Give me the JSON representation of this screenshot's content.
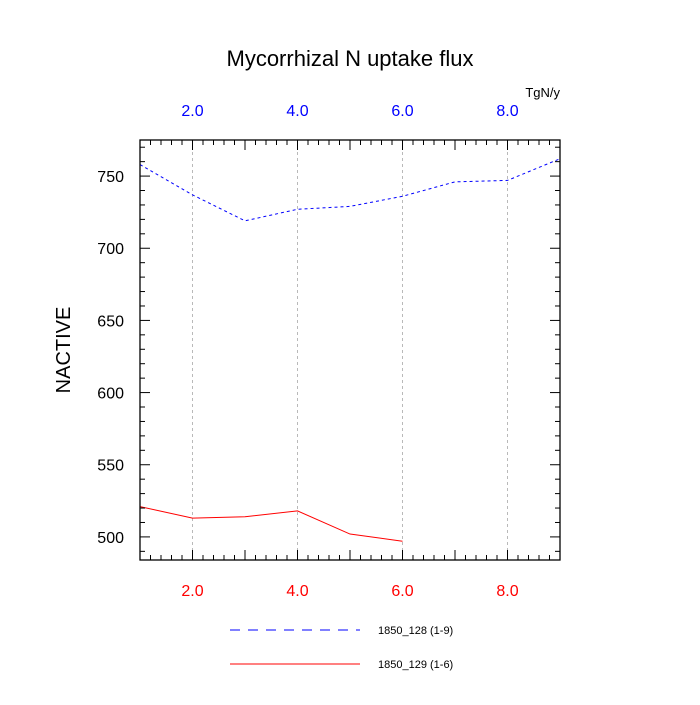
{
  "chart_data": {
    "type": "line",
    "title": "Mycorrhizal N uptake flux",
    "ylabel": "NACTIVE",
    "units_label": "TgN/y",
    "xlim": [
      1,
      9
    ],
    "ylim": [
      484,
      775
    ],
    "x_ticks": [
      2,
      4,
      6,
      8
    ],
    "x_tick_labels": [
      "2.0",
      "4.0",
      "6.0",
      "8.0"
    ],
    "y_ticks": [
      500,
      550,
      600,
      650,
      700,
      750
    ],
    "y_tick_labels": [
      "500",
      "550",
      "600",
      "650",
      "700",
      "750"
    ],
    "grid": "vertical-dashed-at-x-ticks",
    "series": [
      {
        "name": "1850_128 (1-9)",
        "color": "#0000ff",
        "style": "dashed",
        "x": [
          1,
          2,
          3,
          4,
          5,
          6,
          7,
          8,
          9
        ],
        "values": [
          758,
          737,
          719,
          727,
          729,
          736,
          746,
          747,
          762
        ]
      },
      {
        "name": "1850_129 (1-6)",
        "color": "#ff0000",
        "style": "solid",
        "x": [
          1,
          2,
          3,
          4,
          5,
          6
        ],
        "values": [
          521,
          513,
          514,
          518,
          502,
          497
        ]
      }
    ],
    "top_axis_color": "#0000ff",
    "bottom_axis_color": "#ff0000"
  }
}
